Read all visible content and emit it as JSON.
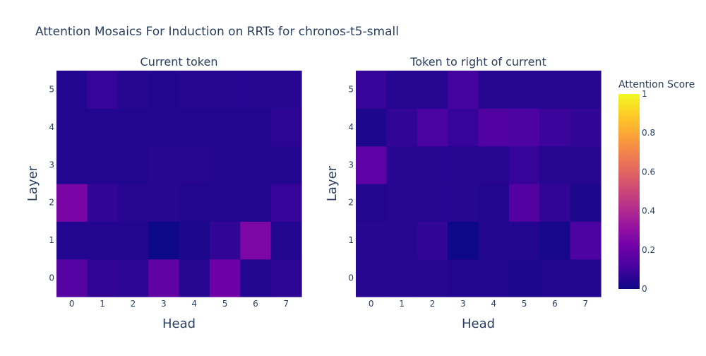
{
  "title": "Attention Mosaics For Induction on RRTs for chronos-t5-small",
  "colorbar": {
    "title": "Attention Score",
    "tick_labels": [
      "0",
      "0.2",
      "0.4",
      "0.6",
      "0.8",
      "1"
    ],
    "tick_values": [
      0,
      0.2,
      0.4,
      0.6,
      0.8,
      1
    ]
  },
  "chart_data": [
    {
      "type": "heatmap",
      "title": "Current token",
      "xlabel": "Head",
      "ylabel": "Layer",
      "x": [
        0,
        1,
        2,
        3,
        4,
        5,
        6,
        7
      ],
      "y": [
        0,
        1,
        2,
        3,
        4,
        5
      ],
      "x_tick_labels": [
        "0",
        "1",
        "2",
        "3",
        "4",
        "5",
        "6",
        "7"
      ],
      "y_tick_labels": [
        "0",
        "1",
        "2",
        "3",
        "4",
        "5"
      ],
      "zlim": [
        0,
        1
      ],
      "z": [
        [
          0.15,
          0.07,
          0.06,
          0.18,
          0.05,
          0.21,
          0.04,
          0.06
        ],
        [
          0.04,
          0.04,
          0.04,
          0.0,
          0.03,
          0.07,
          0.25,
          0.04
        ],
        [
          0.24,
          0.07,
          0.05,
          0.05,
          0.04,
          0.04,
          0.04,
          0.08
        ],
        [
          0.04,
          0.04,
          0.04,
          0.05,
          0.05,
          0.04,
          0.04,
          0.04
        ],
        [
          0.04,
          0.04,
          0.04,
          0.04,
          0.04,
          0.04,
          0.04,
          0.06
        ],
        [
          0.04,
          0.08,
          0.05,
          0.04,
          0.05,
          0.05,
          0.05,
          0.05
        ]
      ]
    },
    {
      "type": "heatmap",
      "title": "Token to right of current",
      "xlabel": "Head",
      "ylabel": "Layer",
      "x": [
        0,
        1,
        2,
        3,
        4,
        5,
        6,
        7
      ],
      "y": [
        0,
        1,
        2,
        3,
        4,
        5
      ],
      "x_tick_labels": [
        "0",
        "1",
        "2",
        "3",
        "4",
        "5",
        "6",
        "7"
      ],
      "y_tick_labels": [
        "0",
        "1",
        "2",
        "3",
        "4",
        "5"
      ],
      "zlim": [
        0,
        1
      ],
      "z": [
        [
          0.05,
          0.05,
          0.05,
          0.04,
          0.04,
          0.03,
          0.04,
          0.04
        ],
        [
          0.05,
          0.05,
          0.07,
          0.0,
          0.04,
          0.04,
          0.02,
          0.13
        ],
        [
          0.04,
          0.05,
          0.05,
          0.05,
          0.04,
          0.14,
          0.07,
          0.03
        ],
        [
          0.17,
          0.05,
          0.05,
          0.05,
          0.05,
          0.08,
          0.05,
          0.05
        ],
        [
          0.03,
          0.07,
          0.12,
          0.08,
          0.14,
          0.13,
          0.09,
          0.07
        ],
        [
          0.08,
          0.05,
          0.05,
          0.11,
          0.05,
          0.05,
          0.05,
          0.05
        ]
      ]
    }
  ]
}
